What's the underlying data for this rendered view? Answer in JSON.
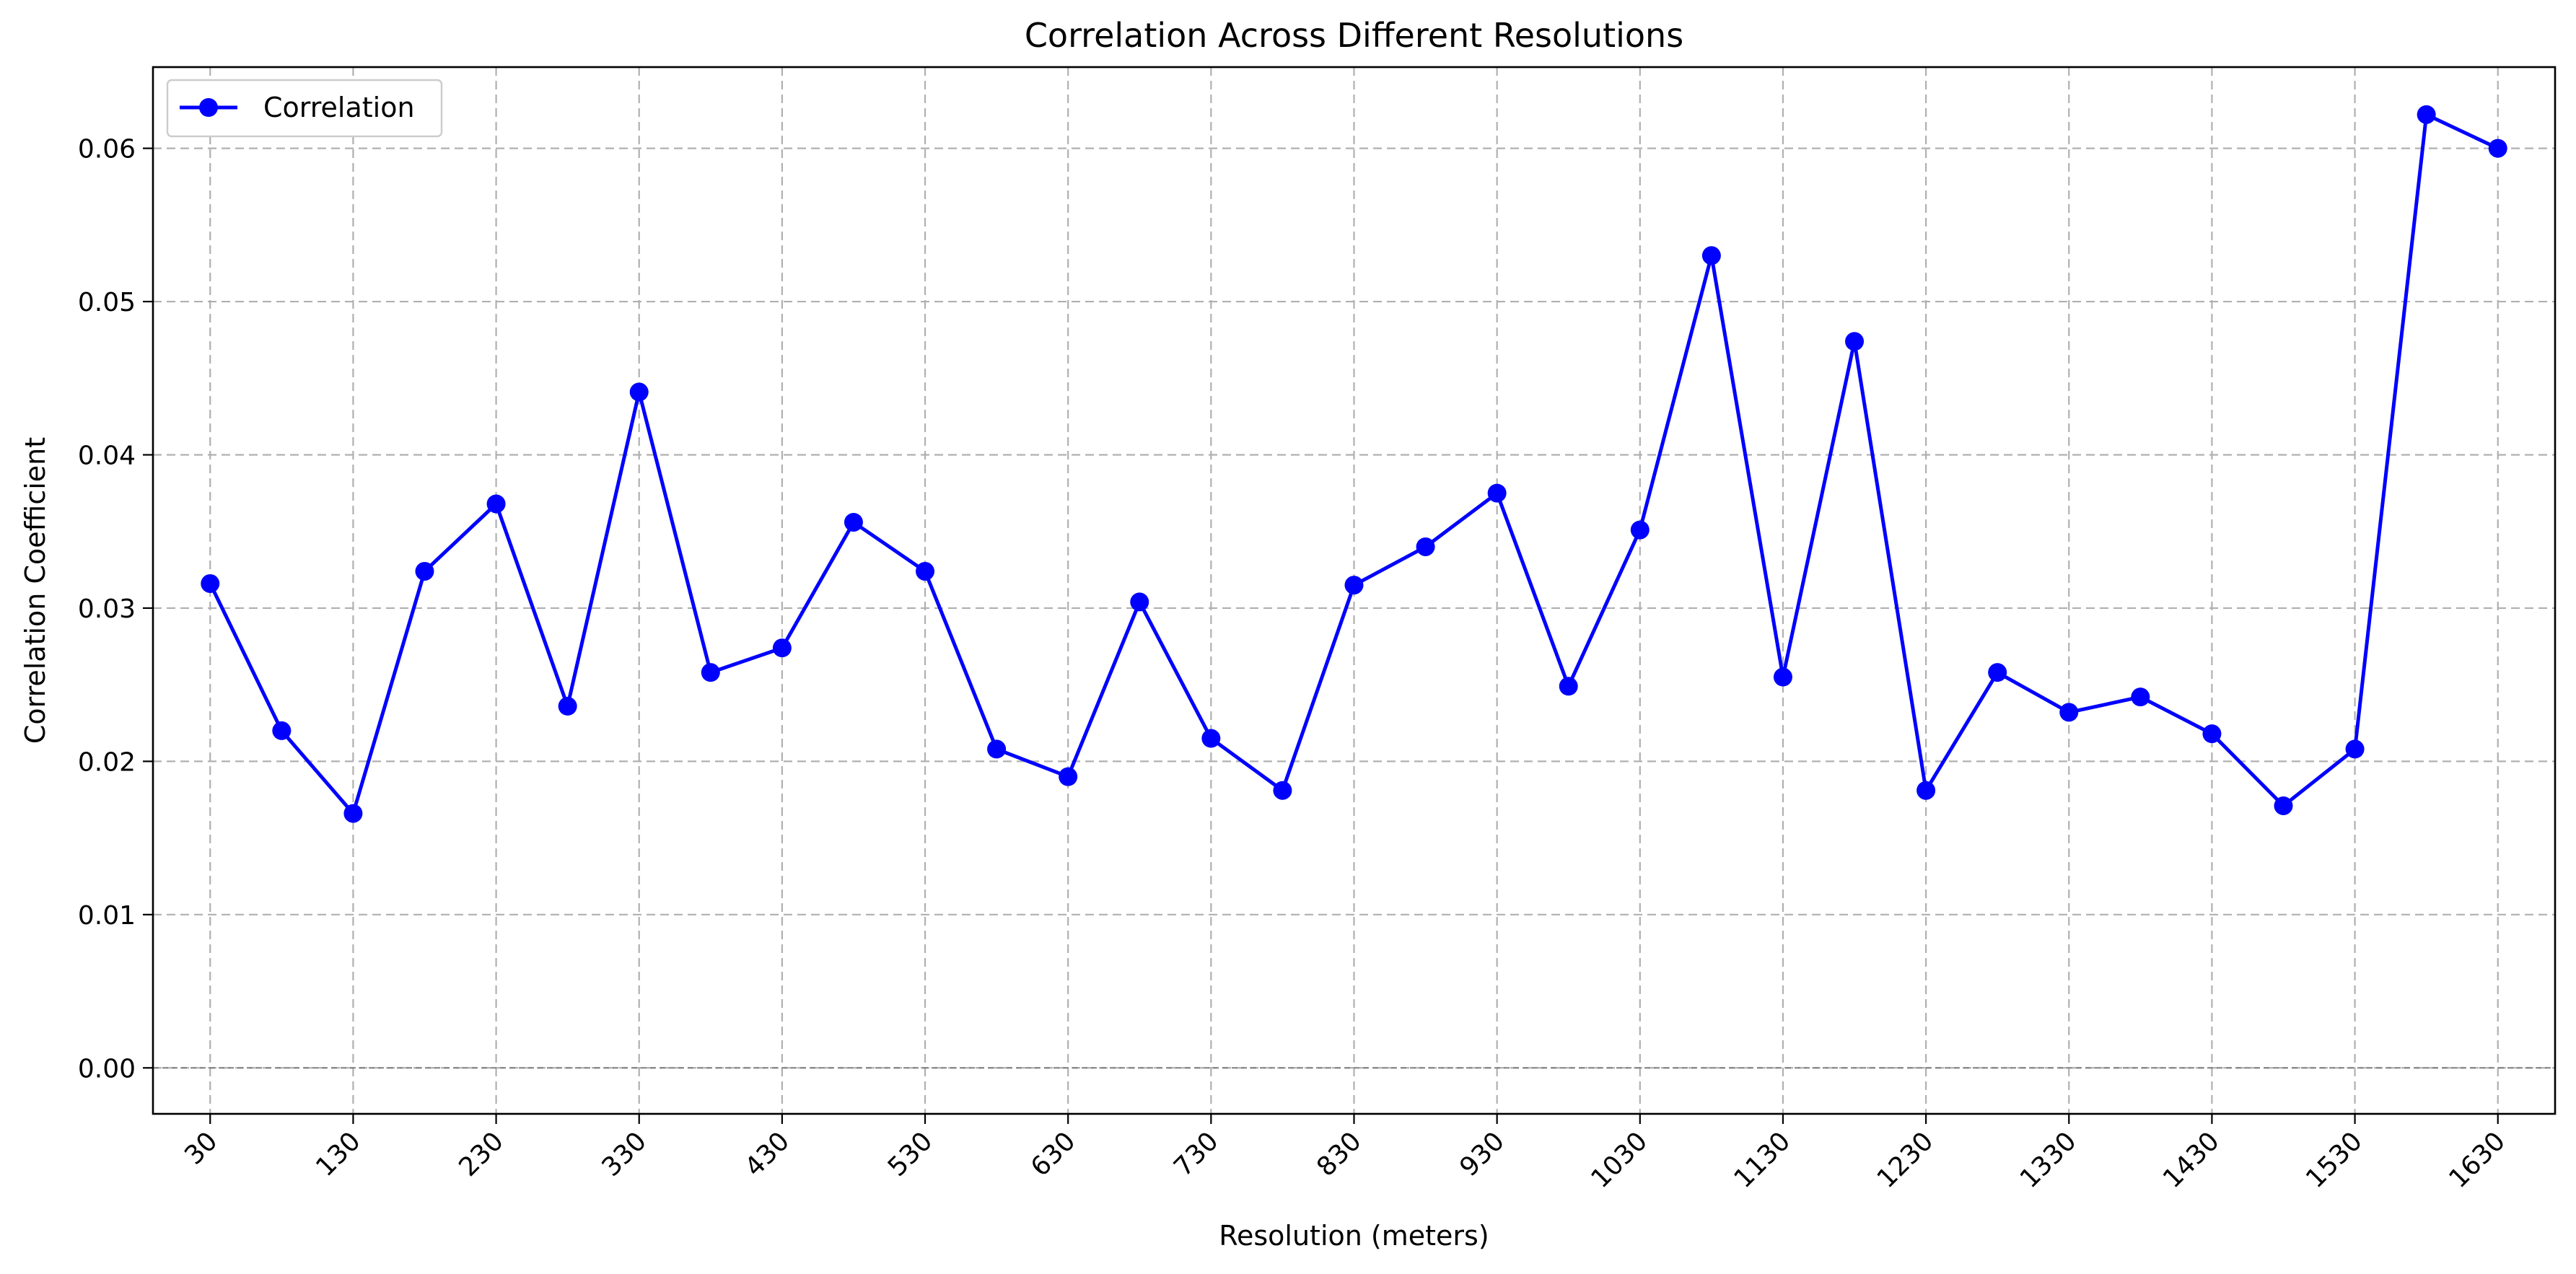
{
  "chart_data": {
    "type": "line",
    "title": "Correlation Across Different Resolutions",
    "xlabel": "Resolution (meters)",
    "ylabel": "Correlation Coefficient",
    "xlim": [
      -10,
      1670
    ],
    "ylim": [
      -0.003,
      0.0653
    ],
    "xticks": [
      30,
      130,
      230,
      330,
      430,
      530,
      630,
      730,
      830,
      930,
      1030,
      1130,
      1230,
      1330,
      1430,
      1530,
      1630
    ],
    "xtick_labels": [
      "30",
      "130",
      "230",
      "330",
      "430",
      "530",
      "630",
      "730",
      "830",
      "930",
      "1030",
      "1130",
      "1230",
      "1330",
      "1430",
      "1530",
      "1630"
    ],
    "yticks": [
      0.0,
      0.01,
      0.02,
      0.03,
      0.04,
      0.05,
      0.06
    ],
    "ytick_labels": [
      "0.00",
      "0.01",
      "0.02",
      "0.03",
      "0.04",
      "0.05",
      "0.06"
    ],
    "grid": true,
    "legend_placement": "top-left",
    "reference_line_y": 0,
    "series": [
      {
        "name": "Correlation",
        "color": "#0000ff",
        "marker": "circle",
        "x": [
          30,
          80,
          130,
          180,
          230,
          280,
          330,
          380,
          430,
          480,
          530,
          580,
          630,
          680,
          730,
          780,
          830,
          880,
          930,
          980,
          1030,
          1080,
          1130,
          1180,
          1230,
          1280,
          1330,
          1380,
          1430,
          1480,
          1530,
          1580,
          1630
        ],
        "values": [
          0.0316,
          0.022,
          0.0166,
          0.0324,
          0.0368,
          0.0236,
          0.0441,
          0.0258,
          0.0274,
          0.0356,
          0.0324,
          0.0208,
          0.019,
          0.0304,
          0.0215,
          0.0181,
          0.0315,
          0.034,
          0.0375,
          0.0249,
          0.0351,
          0.053,
          0.0255,
          0.0474,
          0.0181,
          0.0258,
          0.0232,
          0.0242,
          0.0218,
          0.0171,
          0.0208,
          0.0622,
          0.06
        ]
      }
    ]
  }
}
